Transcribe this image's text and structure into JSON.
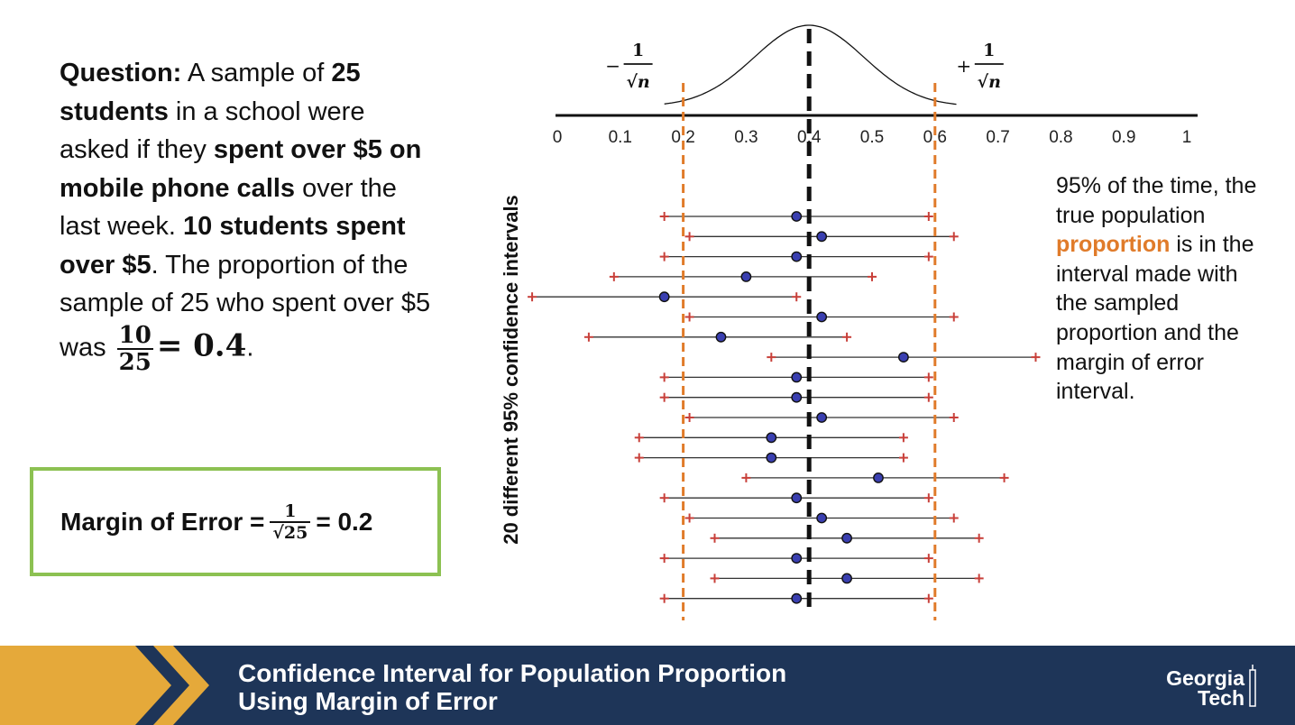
{
  "question": {
    "label": "Question:",
    "t1": "A sample of",
    "b1": "25 students",
    "t2": "in a school were asked if they",
    "b2": "spent over $5 on mobile phone calls",
    "t3": "over the last week.",
    "b3": "10 students spent over $5",
    "t4": ". The proportion of the sample of 25 who spent over $5 was",
    "frac_num": "10",
    "frac_den": "25",
    "result": "= 0.4",
    "end": "."
  },
  "moe": {
    "label": "Margin of Error =",
    "num": "1",
    "den": "√25",
    "result": "= 0.2"
  },
  "side_note": {
    "before": "95% of the time, the true population",
    "highlight": "proportion",
    "after": "is in the interval made with the sampled proportion and the margin of error interval."
  },
  "footer": {
    "title_line1": "Confidence Interval for Population Proportion",
    "title_line2": "Using Margin of Error",
    "logo_line1": "Georgia",
    "logo_line2": "Tech"
  },
  "colors": {
    "orange": "#e07b2a",
    "navy": "#1e3558",
    "gold": "#e5a93a",
    "green_border": "#8cc152",
    "point": "#3a3fb0",
    "endpoint": "#c8403a"
  },
  "chart_data": {
    "type": "scatter",
    "xlim": [
      0,
      1
    ],
    "xticks": [
      "0",
      "0.1",
      "0.2",
      "0.3",
      "0.4",
      "0.5",
      "0.6",
      "0.7",
      "0.8",
      "0.9",
      "1"
    ],
    "ylabel": "20 different 95% confidence intervals",
    "true_proportion": 0.4,
    "bounds": [
      0.2,
      0.6
    ],
    "bound_labels": {
      "left_sign": "−",
      "right_sign": "+",
      "num": "1",
      "den": "√n"
    },
    "intervals": [
      {
        "p": 0.38,
        "low": 0.17,
        "high": 0.59
      },
      {
        "p": 0.42,
        "low": 0.21,
        "high": 0.63
      },
      {
        "p": 0.38,
        "low": 0.17,
        "high": 0.59
      },
      {
        "p": 0.3,
        "low": 0.09,
        "high": 0.5
      },
      {
        "p": 0.17,
        "low": -0.04,
        "high": 0.38
      },
      {
        "p": 0.42,
        "low": 0.21,
        "high": 0.63
      },
      {
        "p": 0.26,
        "low": 0.05,
        "high": 0.46
      },
      {
        "p": 0.55,
        "low": 0.34,
        "high": 0.76
      },
      {
        "p": 0.38,
        "low": 0.17,
        "high": 0.59
      },
      {
        "p": 0.38,
        "low": 0.17,
        "high": 0.59
      },
      {
        "p": 0.42,
        "low": 0.21,
        "high": 0.63
      },
      {
        "p": 0.34,
        "low": 0.13,
        "high": 0.55
      },
      {
        "p": 0.34,
        "low": 0.13,
        "high": 0.55
      },
      {
        "p": 0.51,
        "low": 0.3,
        "high": 0.71
      },
      {
        "p": 0.38,
        "low": 0.17,
        "high": 0.59
      },
      {
        "p": 0.42,
        "low": 0.21,
        "high": 0.63
      },
      {
        "p": 0.46,
        "low": 0.25,
        "high": 0.67
      },
      {
        "p": 0.38,
        "low": 0.17,
        "high": 0.59
      },
      {
        "p": 0.46,
        "low": 0.25,
        "high": 0.67
      },
      {
        "p": 0.38,
        "low": 0.17,
        "high": 0.59
      }
    ]
  }
}
